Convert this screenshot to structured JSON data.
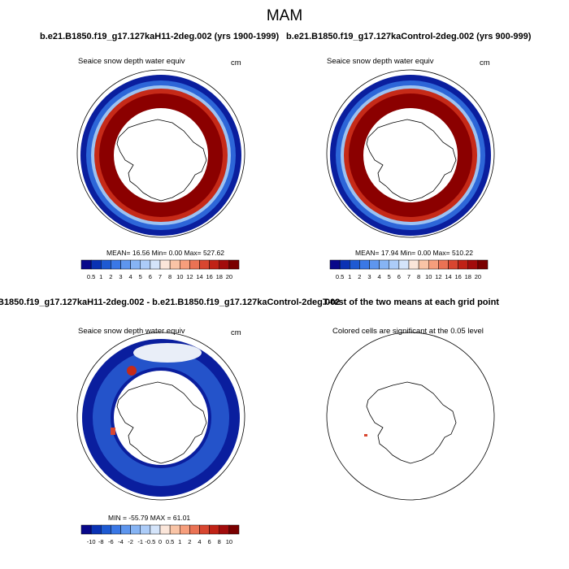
{
  "figure": {
    "title": "MAM",
    "panel_a": {
      "case_title": "b.e21.B1850.f19_g17.127kaH11-2deg.002 (yrs 1900-1999)",
      "variable": "Seaice snow depth water equiv",
      "units": "cm",
      "stats": {
        "mean_label": "MEAN=",
        "mean": "16.56",
        "min_label": "Min=",
        "min": "0.00",
        "max_label": "Max=",
        "max": "527.62"
      }
    },
    "panel_b": {
      "case_title": "b.e21.B1850.f19_g17.127kaControl-2deg.002 (yrs 900-999)",
      "variable": "Seaice snow depth water equiv",
      "units": "cm",
      "stats": {
        "mean_label": "MEAN=",
        "mean": "17.94",
        "min_label": "Min=",
        "min": "0.00",
        "max_label": "Max=",
        "max": "510.22"
      }
    },
    "panel_c": {
      "title": "B1850.f19_g17.127kaH11-2deg.002 - b.e21.B1850.f19_g17.127kaControl-2deg.002",
      "variable": "Seaice snow depth water equiv",
      "units": "cm",
      "stats": {
        "min_label": "MIN =",
        "min": "-55.79",
        "max_label": "MAX =",
        "max": "61.01"
      }
    },
    "panel_d": {
      "title": "T-test of the two means at each grid point",
      "subtitle": "Colored cells are significant at the 0.05 level"
    },
    "abs_colorbar": {
      "labels": [
        "0.5",
        "1",
        "2",
        "3",
        "4",
        "5",
        "6",
        "7",
        "8",
        "10",
        "12",
        "14",
        "16",
        "18",
        "20"
      ],
      "colors": [
        "#08088a",
        "#0a32b4",
        "#1e5ad2",
        "#3a78e6",
        "#5e96ee",
        "#86b4f4",
        "#acccf8",
        "#d4e4fa",
        "#fbe6da",
        "#f9c4a6",
        "#f69e7c",
        "#ea7254",
        "#d84630",
        "#c02216",
        "#a20c0c",
        "#7a0000"
      ]
    },
    "diff_colorbar": {
      "labels": [
        "-10",
        "-8",
        "-6",
        "-4",
        "-2",
        "-1",
        "-0.5",
        "0",
        "0.5",
        "1",
        "2",
        "4",
        "6",
        "8",
        "10"
      ],
      "colors": [
        "#08088a",
        "#0a32b4",
        "#1e5ad2",
        "#3a78e6",
        "#5e96ee",
        "#86b4f4",
        "#acccf8",
        "#d4e4fa",
        "#fbe6da",
        "#f9c4a6",
        "#f69e7c",
        "#ea7254",
        "#d84630",
        "#c02216",
        "#a20c0c",
        "#7a0000"
      ]
    },
    "colors": {
      "dark_red": "#8b0000",
      "mid_red": "#c62a18",
      "dark_blue": "#0a1e9e",
      "mid_blue": "#2d66d8",
      "light_blue": "#9cc2f2",
      "pale": "#e9eef8"
    }
  }
}
